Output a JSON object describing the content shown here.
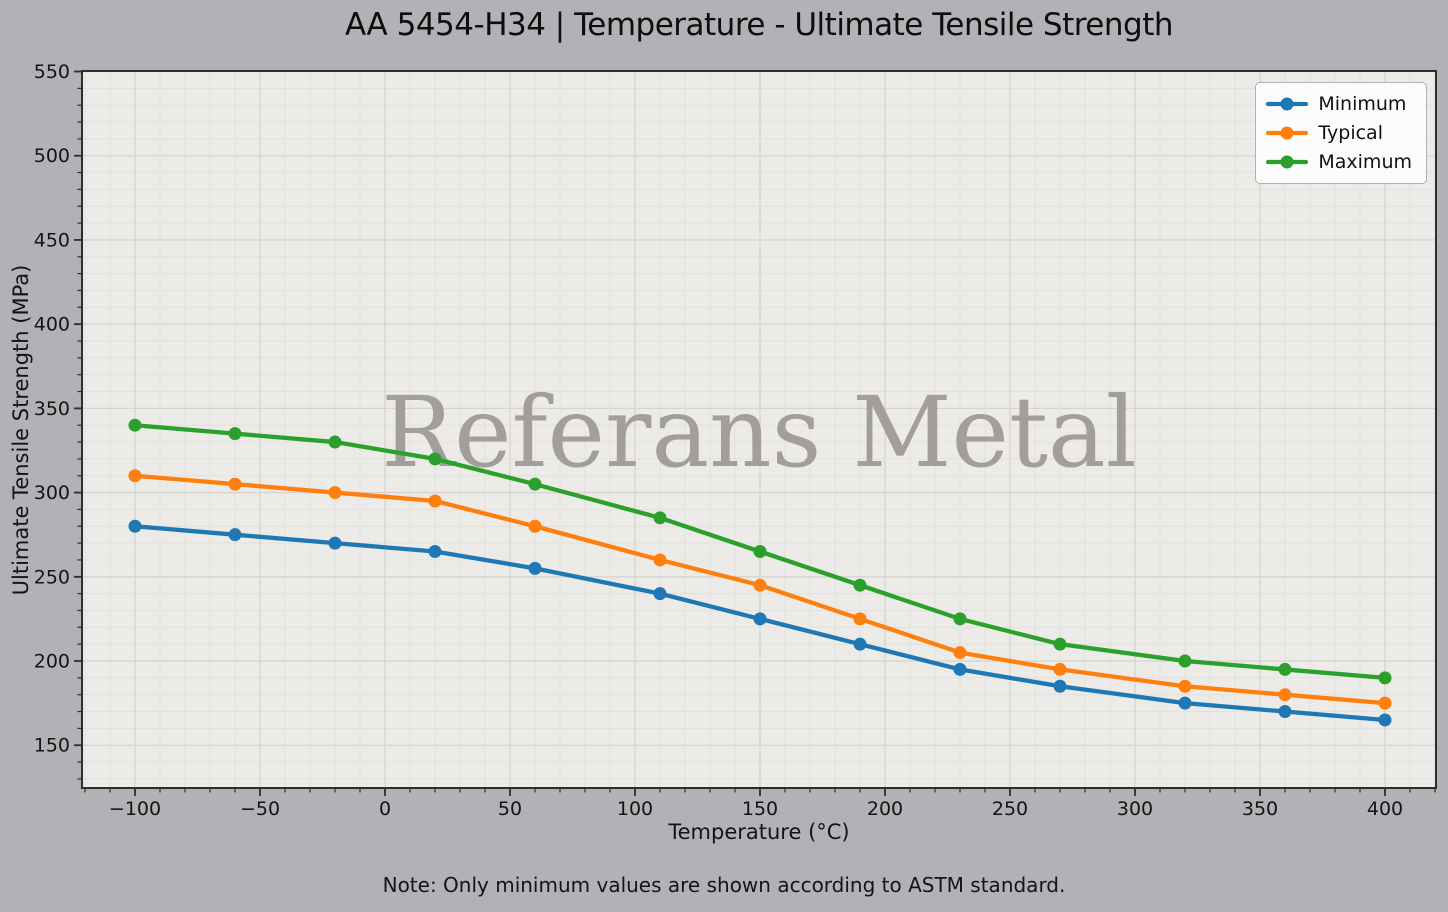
{
  "note": "Note: Only minimum values are shown according to ASTM standard.",
  "watermark": "Referans Metal",
  "colors": {
    "figure_bg": "#b2b1b5",
    "plot_bg": "#edebe8",
    "grid_major": "#d6d3d0",
    "grid_minor": "#e2dfdc",
    "spine": "#2d2d2d",
    "tick_text": "#141414",
    "watermark_text": "#a19e9b",
    "minimum": "#1f77b4",
    "typical": "#ff7f0e",
    "maximum": "#2ca02c"
  },
  "chart_data": {
    "type": "line",
    "title": "AA 5454-H34 | Temperature - Ultimate Tensile Strength",
    "xlabel": "Temperature (°C)",
    "ylabel": "Ultimate Tensile Strength (MPa)",
    "x": [
      -100,
      -60,
      -20,
      20,
      60,
      110,
      150,
      190,
      230,
      270,
      320,
      360,
      400
    ],
    "series": [
      {
        "name": "Minimum",
        "color": "#1f77b4",
        "values": [
          280,
          275,
          270,
          265,
          255,
          240,
          225,
          210,
          195,
          185,
          175,
          170,
          165
        ]
      },
      {
        "name": "Typical",
        "color": "#ff7f0e",
        "values": [
          310,
          305,
          300,
          295,
          280,
          260,
          245,
          225,
          205,
          195,
          185,
          180,
          175
        ]
      },
      {
        "name": "Maximum",
        "color": "#2ca02c",
        "values": [
          340,
          335,
          330,
          320,
          305,
          285,
          265,
          245,
          225,
          210,
          200,
          195,
          190
        ]
      }
    ],
    "xlim": [
      -121.2,
      420.4
    ],
    "ylim": [
      124.6,
      550.3
    ],
    "xticks": [
      -100,
      -50,
      0,
      50,
      100,
      150,
      200,
      250,
      300,
      350,
      400
    ],
    "yticks": [
      150,
      200,
      250,
      300,
      350,
      400,
      450,
      500,
      550
    ],
    "minor_step_x": 10,
    "minor_step_y": 10,
    "grid": "major+minor",
    "legend_position": "top-right",
    "legend_labels": [
      "Minimum",
      "Typical",
      "Maximum"
    ]
  }
}
